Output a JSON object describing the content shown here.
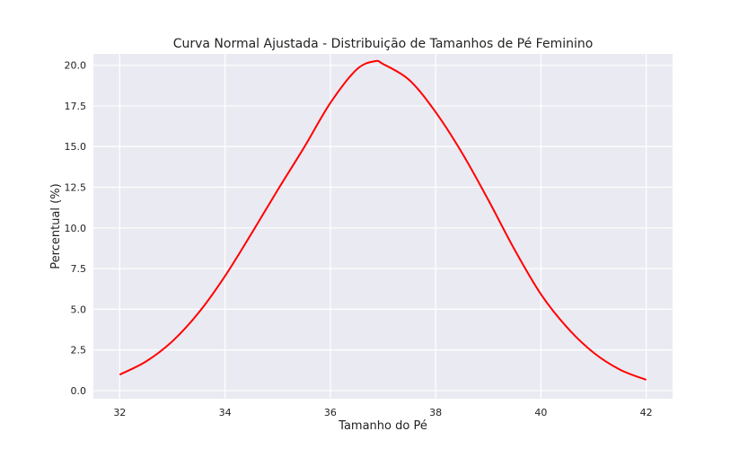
{
  "chart_data": {
    "type": "line",
    "title": "Curva Normal Ajustada - Distribuição de Tamanhos de Pé Feminino",
    "xlabel": "Tamanho do Pé",
    "ylabel": "Percentual (%)",
    "xlim": [
      31.5,
      42.5
    ],
    "ylim": [
      -0.5,
      20.7
    ],
    "xticks": [
      32,
      34,
      36,
      38,
      40,
      42
    ],
    "xtick_labels": [
      "32",
      "34",
      "36",
      "38",
      "40",
      "42"
    ],
    "yticks": [
      0,
      2.5,
      5,
      7.5,
      10,
      12.5,
      15,
      17.5,
      20
    ],
    "ytick_labels": [
      "0.0",
      "2.5",
      "5.0",
      "7.5",
      "10.0",
      "12.5",
      "15.0",
      "17.5",
      "20.0"
    ],
    "grid": true,
    "series": [
      {
        "color": "#ff0000",
        "x": [
          32,
          32.5,
          33,
          33.5,
          34,
          34.5,
          35,
          35.5,
          36,
          36.5,
          36.85,
          37,
          37.5,
          38,
          38.5,
          39,
          39.5,
          40,
          40.5,
          41,
          41.5,
          42
        ],
        "y": [
          0.98,
          1.79,
          3.03,
          4.79,
          7.04,
          9.64,
          12.33,
          14.94,
          17.68,
          19.74,
          20.25,
          20.08,
          19.09,
          17.12,
          14.62,
          11.72,
          8.66,
          5.92,
          3.87,
          2.33,
          1.29,
          0.66
        ]
      }
    ]
  }
}
